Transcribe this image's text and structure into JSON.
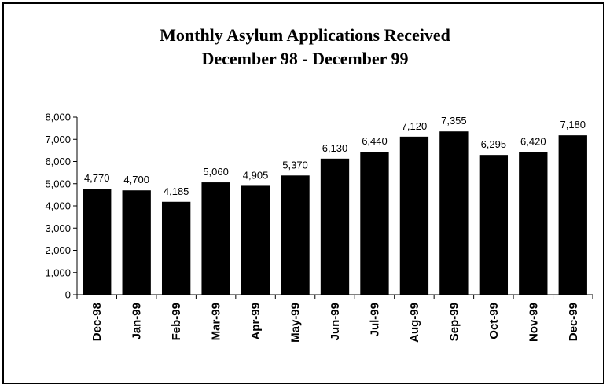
{
  "chart_data": {
    "type": "bar",
    "title": "Monthly Asylum Applications Received",
    "subtitle": "December 98 - December 99",
    "categories": [
      "Dec-98",
      "Jan-99",
      "Feb-99",
      "Mar-99",
      "Apr-99",
      "May-99",
      "Jun-99",
      "Jul-99",
      "Aug-99",
      "Sep-99",
      "Oct-99",
      "Nov-99",
      "Dec-99"
    ],
    "values": [
      4770,
      4700,
      4185,
      5060,
      4905,
      5370,
      6130,
      6440,
      7120,
      7355,
      6295,
      6420,
      7180
    ],
    "data_labels": [
      "4,770",
      "4,700",
      "4,185",
      "5,060",
      "4,905",
      "5,370",
      "6,130",
      "6,440",
      "7,120",
      "7,355",
      "6,295",
      "6,420",
      "7,180"
    ],
    "y_ticks": [
      0,
      1000,
      2000,
      3000,
      4000,
      5000,
      6000,
      7000,
      8000
    ],
    "y_tick_labels": [
      "0",
      "1,000",
      "2,000",
      "3,000",
      "4,000",
      "5,000",
      "6,000",
      "7,000",
      "8,000"
    ],
    "ylim": [
      0,
      8000
    ],
    "bar_color": "#000000",
    "grid": false,
    "legend": "none"
  }
}
